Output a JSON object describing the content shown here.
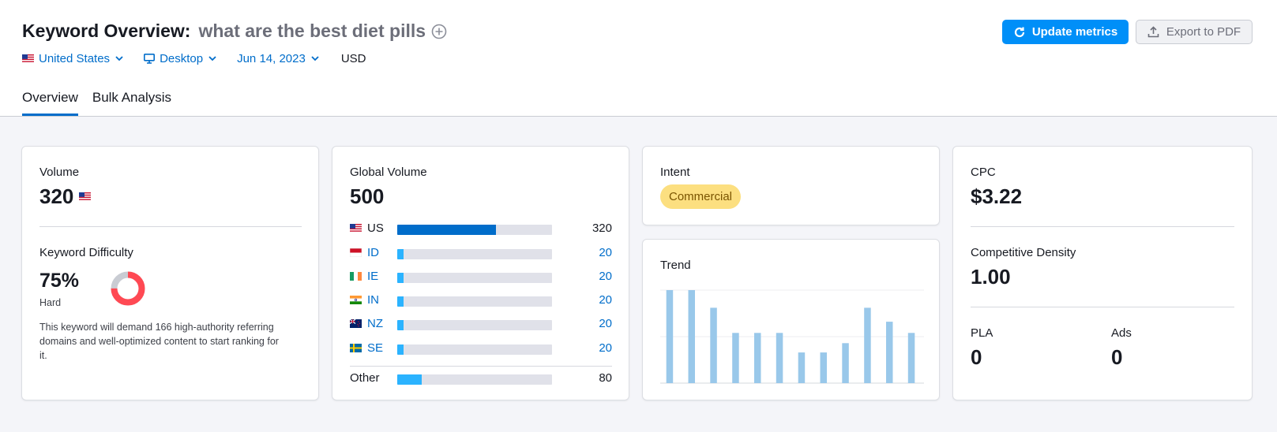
{
  "header": {
    "title": "Keyword Overview:",
    "keyword": "what are the best diet pills",
    "filters": {
      "country": "United States",
      "device": "Desktop",
      "date": "Jun 14, 2023",
      "currency": "USD"
    },
    "update_button": "Update metrics",
    "export_button": "Export to PDF"
  },
  "tabs": [
    {
      "label": "Overview",
      "active": true
    },
    {
      "label": "Bulk Analysis",
      "active": false
    }
  ],
  "volume": {
    "label": "Volume",
    "value": "320"
  },
  "keyword_difficulty": {
    "label": "Keyword Difficulty",
    "value": "75%",
    "percent": 75,
    "level": "Hard",
    "description": "This keyword will demand 166 high-authority referring domains and well-optimized content to start ranking for it."
  },
  "global_volume": {
    "label": "Global Volume",
    "value": "500",
    "countries": [
      {
        "code": "US",
        "value": "320",
        "fraction": 0.64
      },
      {
        "code": "ID",
        "value": "20",
        "fraction": 0.04
      },
      {
        "code": "IE",
        "value": "20",
        "fraction": 0.04
      },
      {
        "code": "IN",
        "value": "20",
        "fraction": 0.04
      },
      {
        "code": "NZ",
        "value": "20",
        "fraction": 0.04
      },
      {
        "code": "SE",
        "value": "20",
        "fraction": 0.04
      }
    ],
    "other": {
      "label": "Other",
      "value": "80",
      "fraction": 0.16
    }
  },
  "intent": {
    "label": "Intent",
    "badge": "Commercial"
  },
  "trend": {
    "label": "Trend",
    "chart_data": {
      "type": "bar",
      "values": [
        1.0,
        1.0,
        0.81,
        0.54,
        0.54,
        0.54,
        0.33,
        0.33,
        0.43,
        0.81,
        0.66,
        0.54
      ],
      "ylim": [
        0,
        1
      ],
      "grid": true
    }
  },
  "cpc": {
    "label": "CPC",
    "value": "$3.22"
  },
  "competitive_density": {
    "label": "Competitive Density",
    "value": "1.00"
  },
  "pla": {
    "label": "PLA",
    "value": "0"
  },
  "ads": {
    "label": "Ads",
    "value": "0"
  },
  "colors": {
    "accent": "#006dca",
    "button": "#008ff8",
    "us_bar": "#006dca",
    "small_bar": "#2bb3ff",
    "trend_bar": "#99c8ea",
    "kd_fill": "#ff4953",
    "badge_bg": "#fcdf80"
  }
}
